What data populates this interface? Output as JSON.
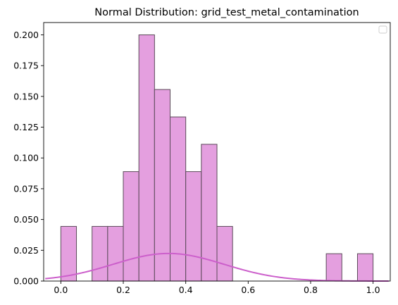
{
  "chart_data": {
    "type": "bar",
    "title": "Normal Distribution: grid_test_metal_contamination",
    "xlabel": "",
    "ylabel": "",
    "xlim": [
      -0.055,
      1.055
    ],
    "ylim": [
      0,
      0.21
    ],
    "x_ticks": [
      0.0,
      0.2,
      0.4,
      0.6,
      0.8,
      1.0
    ],
    "x_tick_labels": [
      "0.0",
      "0.2",
      "0.4",
      "0.6",
      "0.8",
      "1.0"
    ],
    "y_ticks": [
      0.0,
      0.025,
      0.05,
      0.075,
      0.1,
      0.125,
      0.15,
      0.175,
      0.2
    ],
    "y_tick_labels": [
      "0.000",
      "0.025",
      "0.050",
      "0.075",
      "0.100",
      "0.125",
      "0.150",
      "0.175",
      "0.200"
    ],
    "bin_edges": [
      0.0,
      0.05,
      0.1,
      0.15,
      0.2,
      0.25,
      0.3,
      0.35,
      0.4,
      0.45,
      0.5,
      0.55,
      0.6,
      0.65,
      0.7,
      0.75,
      0.8,
      0.85,
      0.9,
      0.95,
      1.0
    ],
    "values": [
      0.0444,
      0.0,
      0.0444,
      0.0444,
      0.0889,
      0.2,
      0.1556,
      0.1333,
      0.0889,
      0.1111,
      0.0444,
      0.0,
      0.0,
      0.0,
      0.0,
      0.0,
      0.0,
      0.0222,
      0.0,
      0.0222
    ],
    "curve": {
      "type": "line",
      "mean": 0.345,
      "std": 0.178,
      "scale": 0.01,
      "x_range": [
        -0.05,
        1.05
      ]
    },
    "grid": false,
    "legend": {
      "position": "top-right",
      "entries": []
    },
    "colors": {
      "bar_fill": "#e49fdf",
      "bar_edge": "#5b4a59",
      "curve": "#cc5fcb"
    }
  }
}
